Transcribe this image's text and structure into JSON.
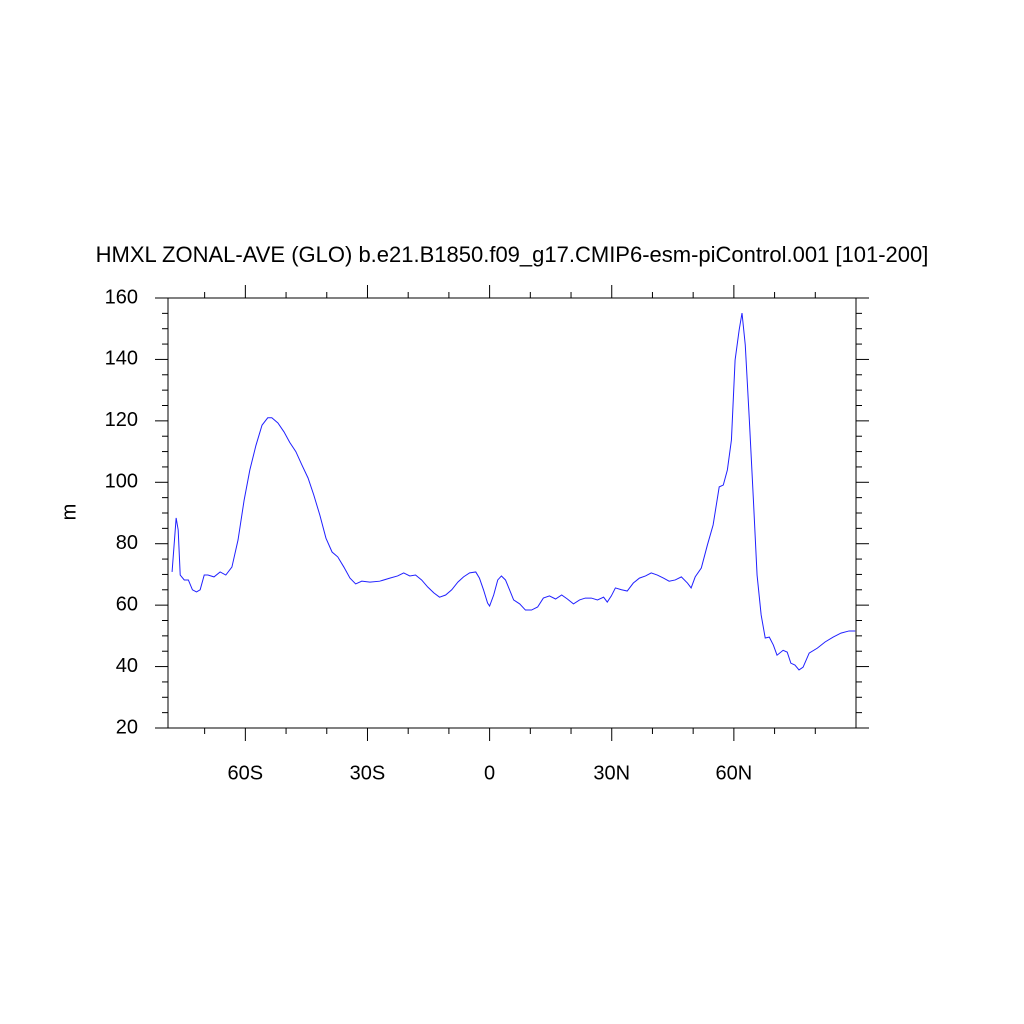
{
  "chart_data": {
    "type": "line",
    "title": "HMXL ZONAL-AVE (GLO) b.e21.B1850.f09_g17.CMIP6-esm-piControl.001 [101-200]",
    "ylabel": "m",
    "color": "#2020ff",
    "x": [
      -78,
      -77,
      -76.5,
      -76,
      -75,
      -74,
      -73,
      -72,
      -71.1,
      -70.1,
      -69.2,
      -67.7,
      -66.2,
      -64.8,
      -63.3,
      -61.8,
      -60.3,
      -58.9,
      -57.4,
      -55.9,
      -54.5,
      -53.5,
      -52,
      -50.5,
      -49.1,
      -47.6,
      -46.1,
      -44.6,
      -43.2,
      -41.7,
      -40.2,
      -38.7,
      -37.3,
      -35.8,
      -34.3,
      -32.9,
      -31.4,
      -29.4,
      -27,
      -24.5,
      -22.6,
      -21.1,
      -19.6,
      -18.2,
      -16.7,
      -15.2,
      -13.7,
      -12.3,
      -10.8,
      -9.3,
      -7.8,
      -6.4,
      -4.9,
      -3.4,
      -2.5,
      -1.5,
      -0.5,
      0,
      1,
      2,
      2.9,
      3.9,
      4.9,
      5.9,
      7.4,
      8.8,
      10.3,
      11.8,
      13.2,
      14.7,
      16.2,
      17.7,
      19.1,
      20.6,
      22.1,
      23.5,
      25,
      26.5,
      28,
      28.9,
      29.9,
      30.9,
      32.4,
      33.8,
      35.3,
      36.8,
      38.3,
      39.7,
      41.2,
      42.7,
      44.1,
      45.6,
      47.1,
      48.6,
      49.5,
      50.5,
      52,
      53.5,
      54.9,
      56.4,
      57.4,
      58.4,
      59.4,
      60.3,
      61.3,
      62,
      62.8,
      63.8,
      64.8,
      65.7,
      66.7,
      67.7,
      68.7,
      69.7,
      70.6,
      72.1,
      73.1,
      74,
      75,
      76,
      77,
      78.5,
      80.5,
      82.4,
      84.4,
      86.3,
      88.3,
      89.8
    ],
    "values": [
      70.8,
      88.4,
      84.5,
      69.8,
      68.2,
      68.2,
      65,
      64.3,
      65,
      69.8,
      69.8,
      69.2,
      70.8,
      69.8,
      72.4,
      81.2,
      94.2,
      104,
      112,
      118.6,
      121,
      121,
      119.3,
      116.4,
      113,
      110,
      105.6,
      101.4,
      95.9,
      89.3,
      81.8,
      77.3,
      75.7,
      72.4,
      68.8,
      66.9,
      67.8,
      67.5,
      67.8,
      68.8,
      69.5,
      70.5,
      69.5,
      69.8,
      68.2,
      65.9,
      64,
      62.6,
      63.3,
      65,
      67.5,
      69.2,
      70.5,
      70.8,
      68.8,
      65,
      60.7,
      59.7,
      63.3,
      68.2,
      69.5,
      68.2,
      65,
      61.7,
      60.4,
      58.4,
      58.4,
      59.4,
      62.3,
      63,
      62,
      63.3,
      62,
      60.4,
      61.7,
      62.3,
      62.3,
      61.7,
      62.6,
      61,
      63,
      65.6,
      65,
      64.6,
      67.2,
      68.8,
      69.5,
      70.5,
      69.8,
      68.8,
      67.8,
      68.2,
      69.2,
      67.2,
      65.6,
      69.2,
      72.1,
      79.6,
      86.1,
      98.5,
      99.1,
      104,
      113.8,
      139.8,
      149.6,
      155.1,
      144.7,
      120.3,
      94.2,
      69.8,
      56.8,
      49.3,
      49.6,
      47,
      43.7,
      45.3,
      44.7,
      41.1,
      40.5,
      38.9,
      39.8,
      44.4,
      46,
      48,
      49.6,
      50.9,
      51.6,
      51.6
    ],
    "xlim": [
      -79,
      90
    ],
    "ylim": [
      20,
      160
    ],
    "xticks": [
      {
        "value": -60,
        "label": "60S"
      },
      {
        "value": -30,
        "label": "30S"
      },
      0,
      {
        "value": 30,
        "label": "30N"
      },
      {
        "value": 60,
        "label": "60N"
      }
    ],
    "xminorticks": [
      -70,
      -50,
      -40,
      -20,
      -10,
      10,
      20,
      40,
      50,
      70,
      80
    ],
    "yticks": [
      20,
      40,
      60,
      80,
      100,
      120,
      140,
      160
    ],
    "yminorticks": [
      25,
      30,
      35,
      45,
      50,
      55,
      65,
      70,
      75,
      85,
      90,
      95,
      105,
      110,
      115,
      125,
      130,
      135,
      145,
      150,
      155
    ]
  }
}
